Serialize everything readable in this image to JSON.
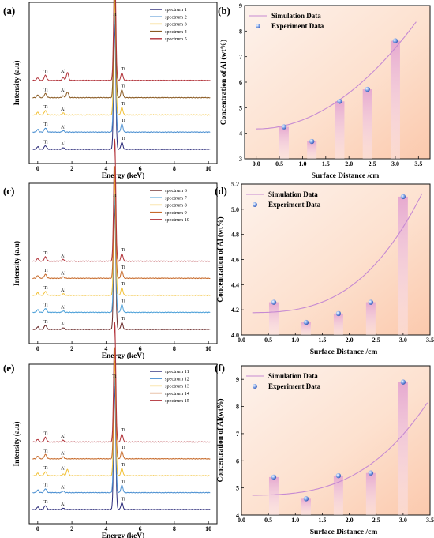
{
  "chart_data": [
    {
      "panel": "(a)",
      "type": "line",
      "xlabel": "Energy (keV)",
      "ylabel": "Intensity (a.u)",
      "xlim": [
        -0.5,
        10.5
      ],
      "xticks": [
        "0",
        "2",
        "4",
        "6",
        "8",
        "10"
      ],
      "peak_labels": {
        "Ti": "Ti",
        "Al": "Al"
      },
      "series": [
        {
          "name": "spectrum 1",
          "color": "#2b2b7a",
          "peaks": {
            "ti_low": 0.25,
            "al": 0.12,
            "ti_ka": 1.0,
            "ti_kb": 0.3,
            "extra": 0.0
          }
        },
        {
          "name": "spectrum 2",
          "color": "#4a8fd1",
          "peaks": {
            "ti_low": 0.28,
            "al": 0.1,
            "ti_ka": 0.95,
            "ti_kb": 0.35,
            "extra": 0.0
          }
        },
        {
          "name": "spectrum 3",
          "color": "#f2c23a",
          "peaks": {
            "ti_low": 0.3,
            "al": 0.14,
            "ti_ka": 0.92,
            "ti_kb": 0.32,
            "extra": 0.0
          }
        },
        {
          "name": "spectrum 4",
          "color": "#8a5a22",
          "peaks": {
            "ti_low": 0.28,
            "al": 0.12,
            "ti_ka": 0.9,
            "ti_kb": 0.34,
            "extra": 0.4
          }
        },
        {
          "name": "spectrum 5",
          "color": "#b2333a",
          "peaks": {
            "ti_low": 0.35,
            "al": 0.2,
            "ti_ka": 0.95,
            "ti_kb": 0.33,
            "extra": 0.55
          }
        }
      ]
    },
    {
      "panel": "(b)",
      "type": "scatter",
      "xlabel": "Surface Distance  /cm",
      "ylabel": "Concentration of Al (wt%)",
      "xlim": [
        -0.25,
        3.75
      ],
      "ylim": [
        3,
        9
      ],
      "xticks": [
        0.0,
        0.5,
        1.0,
        1.5,
        2.0,
        2.5,
        3.0,
        3.5
      ],
      "yticks": [
        3,
        4,
        5,
        6,
        7,
        8,
        9
      ],
      "xtick_decimals": 1,
      "ytick_decimals": 0,
      "legend": [
        "Simulation Data",
        "Experiment Data"
      ],
      "x": [
        0.6,
        1.2,
        1.8,
        2.4,
        3.0
      ],
      "y": [
        4.25,
        3.68,
        5.25,
        5.72,
        7.62
      ],
      "fit": {
        "x": [
          0.0,
          3.45
        ],
        "poly": [
          4.17,
          0.0,
          0.352
        ]
      }
    },
    {
      "panel": "(c)",
      "type": "line",
      "xlabel": "Energy (keV)",
      "ylabel": "Intensity (a.u)",
      "xlim": [
        -0.5,
        10.5
      ],
      "xticks": [
        "0",
        "2",
        "4",
        "6",
        "8",
        "10"
      ],
      "peak_labels": {
        "Ti": "Ti",
        "Al": "Al"
      },
      "series": [
        {
          "name": "spectrum 6",
          "color": "#6a2a2a",
          "peaks": {
            "ti_low": 0.28,
            "al": 0.12,
            "ti_ka": 1.0,
            "ti_kb": 0.3,
            "extra": 0.0
          }
        },
        {
          "name": "spectrum 7",
          "color": "#4a9fd8",
          "peaks": {
            "ti_low": 0.27,
            "al": 0.1,
            "ti_ka": 0.95,
            "ti_kb": 0.34,
            "extra": 0.0
          }
        },
        {
          "name": "spectrum 8",
          "color": "#f2c23a",
          "peaks": {
            "ti_low": 0.27,
            "al": 0.11,
            "ti_ka": 0.93,
            "ti_kb": 0.33,
            "extra": 0.0
          }
        },
        {
          "name": "spectrum 9",
          "color": "#c76a2a",
          "peaks": {
            "ti_low": 0.27,
            "al": 0.1,
            "ti_ka": 0.9,
            "ti_kb": 0.32,
            "extra": 0.0
          }
        },
        {
          "name": "spectrum 10",
          "color": "#b2333a",
          "peaks": {
            "ti_low": 0.3,
            "al": 0.12,
            "ti_ka": 0.98,
            "ti_kb": 0.33,
            "extra": 0.0
          }
        }
      ]
    },
    {
      "panel": "(d)",
      "type": "scatter",
      "xlabel": "Surface Distance /cm",
      "ylabel": "Concentration of Al (wt%)",
      "xlim": [
        0.0,
        3.5
      ],
      "ylim": [
        4.0,
        5.2
      ],
      "xticks": [
        0.0,
        0.5,
        1.0,
        1.5,
        2.0,
        2.5,
        3.0,
        3.5
      ],
      "yticks": [
        4.0,
        4.2,
        4.4,
        4.6,
        4.8,
        5.0,
        5.2
      ],
      "xtick_decimals": 1,
      "ytick_decimals": 1,
      "legend": [
        "Simulation Data",
        "Experiment Data"
      ],
      "x": [
        0.6,
        1.2,
        1.8,
        2.4,
        3.0
      ],
      "y": [
        4.26,
        4.1,
        4.17,
        4.26,
        5.1
      ],
      "fit": {
        "x": [
          0.2,
          3.35
        ],
        "poly": [
          4.177,
          0.0,
          0.0,
          0.0252
        ]
      }
    },
    {
      "panel": "(e)",
      "type": "line",
      "xlabel": "Energy (keV)",
      "ylabel": "Intensity (a.u)",
      "xlim": [
        -0.5,
        10.5
      ],
      "xticks": [
        "0",
        "2",
        "4",
        "6",
        "8",
        "10"
      ],
      "peak_labels": {
        "Ti": "Ti",
        "Al": "Al"
      },
      "series": [
        {
          "name": "spectrum 11",
          "color": "#2b2b7a",
          "peaks": {
            "ti_low": 0.27,
            "al": 0.1,
            "ti_ka": 1.0,
            "ti_kb": 0.3,
            "extra": 0.0
          }
        },
        {
          "name": "spectrum 12",
          "color": "#4a8fd1",
          "peaks": {
            "ti_low": 0.27,
            "al": 0.11,
            "ti_ka": 0.95,
            "ti_kb": 0.32,
            "extra": 0.0
          }
        },
        {
          "name": "spectrum 13",
          "color": "#f2c23a",
          "peaks": {
            "ti_low": 0.28,
            "al": 0.12,
            "ti_ka": 0.93,
            "ti_kb": 0.32,
            "extra": 0.45
          }
        },
        {
          "name": "spectrum 14",
          "color": "#c76a2a",
          "peaks": {
            "ti_low": 0.3,
            "al": 0.14,
            "ti_ka": 0.9,
            "ti_kb": 0.33,
            "extra": 0.0
          }
        },
        {
          "name": "spectrum 15",
          "color": "#b2333a",
          "peaks": {
            "ti_low": 0.32,
            "al": 0.12,
            "ti_ka": 0.97,
            "ti_kb": 0.35,
            "extra": 0.0
          }
        }
      ]
    },
    {
      "panel": "(f)",
      "type": "scatter",
      "xlabel": "Surface Distance  /cm",
      "ylabel": "Concentration of Al(wt%)",
      "xlim": [
        0.0,
        3.5
      ],
      "ylim": [
        4,
        9.5
      ],
      "xticks": [
        0.0,
        0.5,
        1.0,
        1.5,
        2.0,
        2.5,
        3.0,
        3.5
      ],
      "yticks": [
        4,
        5,
        6,
        7,
        8,
        9
      ],
      "xtick_decimals": 1,
      "ytick_decimals": 0,
      "legend": [
        "Simulation Data",
        "Experiment Data"
      ],
      "x": [
        0.6,
        1.2,
        1.8,
        2.4,
        3.0
      ],
      "y": [
        5.4,
        4.6,
        5.45,
        5.55,
        8.9
      ],
      "fit": {
        "x": [
          0.2,
          3.45
        ],
        "poly": [
          4.73,
          0.0,
          0.0,
          0.083
        ]
      }
    }
  ]
}
